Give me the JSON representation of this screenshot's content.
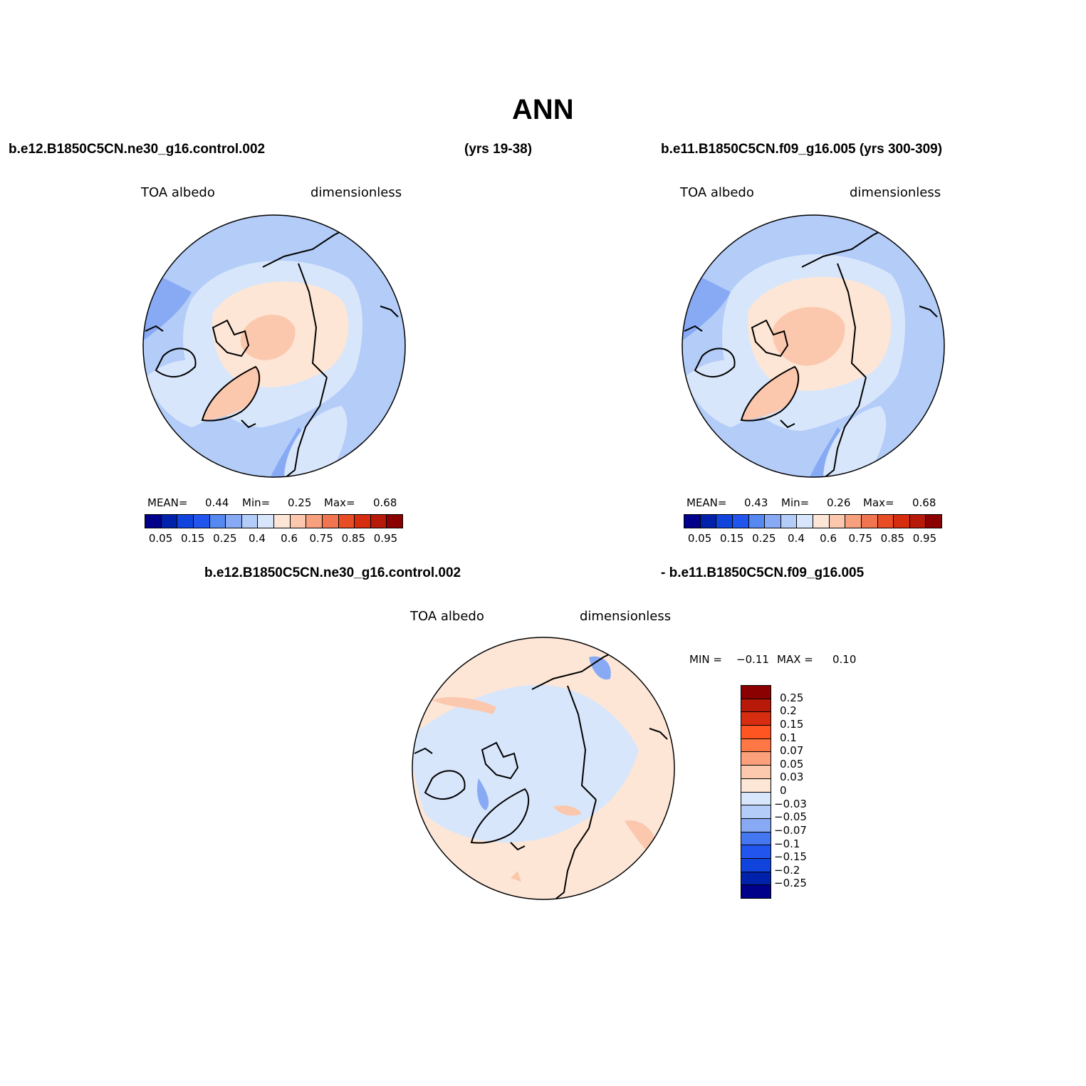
{
  "title": "ANN",
  "header": {
    "case1": "b.e12.B1850C5CN.ne30_g16.control.002",
    "case1_years": "(yrs 19-38)",
    "case2": "b.e11.B1850C5CN.f09_g16.005 (yrs 300-309)"
  },
  "panels": [
    {
      "variable": "TOA albedo",
      "units": "dimensionless",
      "mean_label": "MEAN=",
      "mean": "0.44",
      "min_label": "Min=",
      "min": "0.25",
      "max_label": "Max=",
      "max": "0.68"
    },
    {
      "variable": "TOA albedo",
      "units": "dimensionless",
      "mean_label": "MEAN=",
      "mean": "0.43",
      "min_label": "Min=",
      "min": "0.26",
      "max_label": "Max=",
      "max": "0.68"
    }
  ],
  "diff": {
    "title_left": "b.e12.B1850C5CN.ne30_g16.control.002",
    "title_right": "- b.e11.B1850C5CN.f09_g16.005",
    "variable": "TOA albedo",
    "units": "dimensionless",
    "min_label": "MIN =",
    "min": "−0.11",
    "max_label": "MAX =",
    "max": "0.10"
  },
  "colorbar_abs": {
    "ticks": [
      "0.05",
      "0.15",
      "0.25",
      "0.4",
      "0.6",
      "0.75",
      "0.85",
      "0.95"
    ],
    "colors": [
      "#00008b",
      "#0022aa",
      "#1144dd",
      "#2255ee",
      "#5588f0",
      "#88aaf5",
      "#b3ccf8",
      "#d8e6fb",
      "#fde6d6",
      "#fbc8ae",
      "#f6a07e",
      "#f07550",
      "#e84d25",
      "#d62d10",
      "#b81a0a",
      "#8b0000"
    ]
  },
  "colorbar_diff": {
    "ticks": [
      "0.25",
      "0.2",
      "0.15",
      "0.1",
      "0.07",
      "0.05",
      "0.03",
      "0",
      "−0.03",
      "−0.05",
      "−0.07",
      "−0.1",
      "−0.15",
      "−0.2",
      "−0.25"
    ],
    "colors": [
      "#8b0000",
      "#b81a0a",
      "#d62d10",
      "#ff5522",
      "#ff7744",
      "#fba07a",
      "#fcc8ae",
      "#fde6d6",
      "#d8e6fb",
      "#b3ccf8",
      "#88aaf5",
      "#4477f0",
      "#2255ee",
      "#1144dd",
      "#0022aa",
      "#00008b"
    ]
  }
}
